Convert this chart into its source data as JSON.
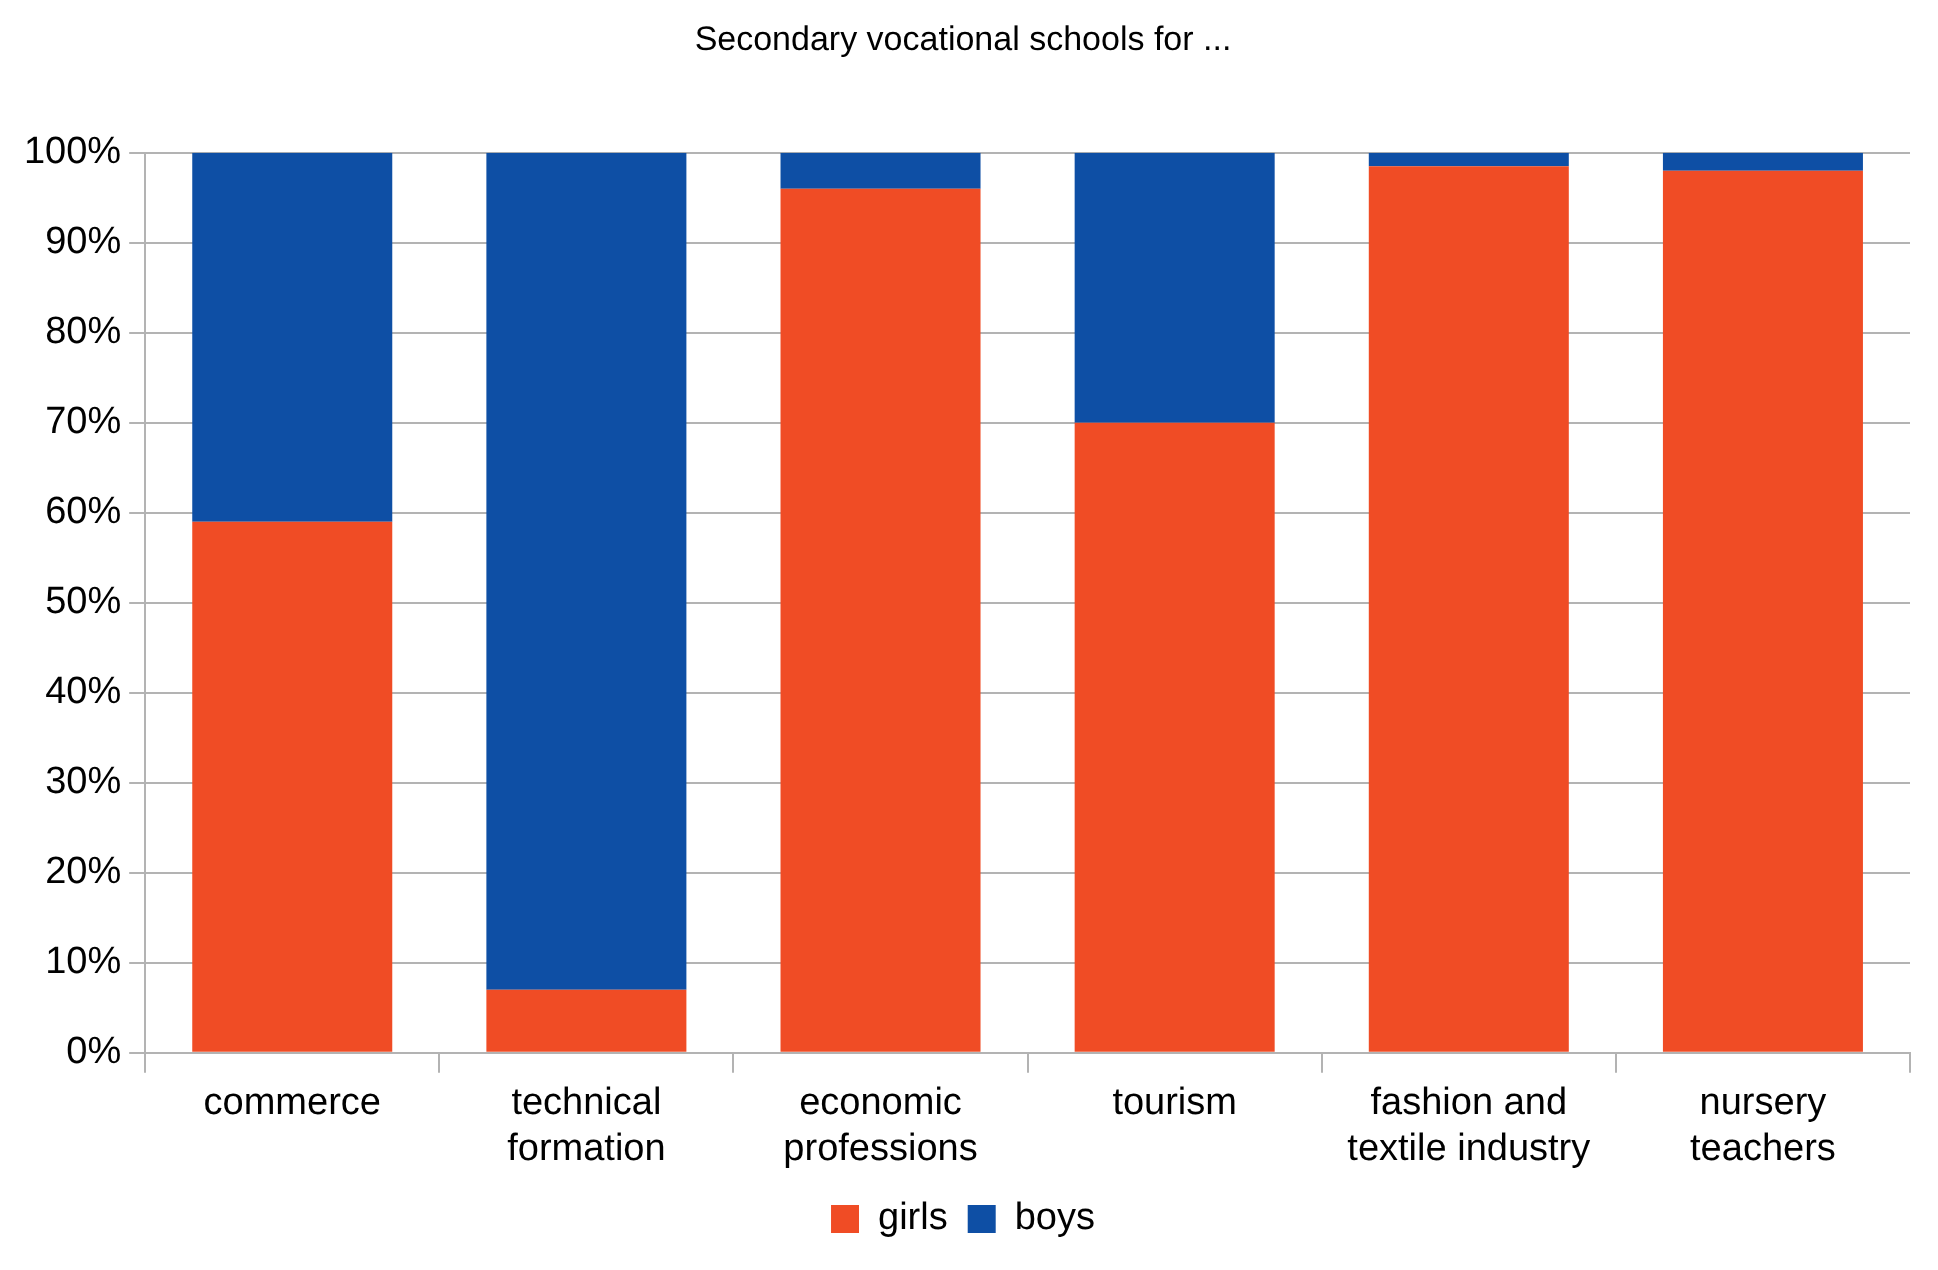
{
  "chart_data": {
    "type": "bar",
    "title": "Secondary vocational schools for ...",
    "categories": [
      "commerce",
      "technical\nformation",
      "economic\nprofessions",
      "tourism",
      "fashion and\ntextile industry",
      "nursery\nteachers"
    ],
    "stacked": true,
    "series": [
      {
        "name": "girls",
        "color": "#f04c25",
        "values": [
          59,
          7,
          96,
          70,
          98.5,
          98
        ]
      },
      {
        "name": "boys",
        "color": "#0e4fa5",
        "values": [
          41,
          93,
          4,
          30,
          1.5,
          2
        ]
      }
    ],
    "ylim": [
      0,
      100
    ],
    "yticks": [
      {
        "value": 0,
        "label": "0%"
      },
      {
        "value": 10,
        "label": "10%"
      },
      {
        "value": 20,
        "label": "20%"
      },
      {
        "value": 30,
        "label": "30%"
      },
      {
        "value": 40,
        "label": "40%"
      },
      {
        "value": 50,
        "label": "50%"
      },
      {
        "value": 60,
        "label": "60%"
      },
      {
        "value": 70,
        "label": "70%"
      },
      {
        "value": 80,
        "label": "80%"
      },
      {
        "value": 90,
        "label": "90%"
      },
      {
        "value": 100,
        "label": "100%"
      }
    ],
    "grid": "y",
    "legend": "bottom"
  }
}
